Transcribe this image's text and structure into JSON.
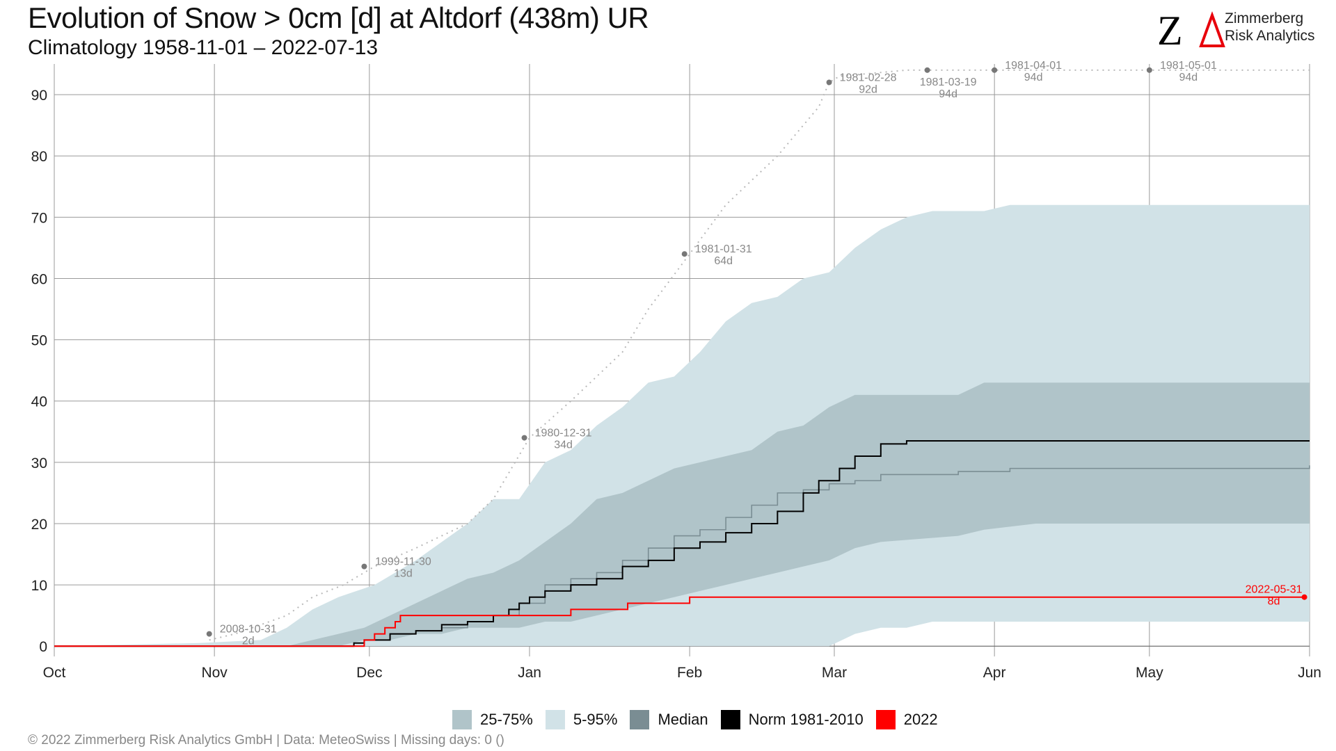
{
  "header": {
    "title": "Evolution of Snow > 0cm [d] at Altdorf (438m) UR",
    "subtitle": "Climatology 1958-11-01 – 2022-07-13"
  },
  "logo": {
    "line1": "Zimmerberg",
    "line2": "Risk Analytics",
    "accent": "#e8000b"
  },
  "legend": {
    "items": [
      {
        "label": "25-75%",
        "color": "#b0c4c9"
      },
      {
        "label": "5-95%",
        "color": "#d1e2e7"
      },
      {
        "label": "Median",
        "color": "#7a8d93"
      },
      {
        "label": "Norm 1981-2010",
        "color": "#000000"
      },
      {
        "label": "2022",
        "color": "#ff0000"
      }
    ]
  },
  "footer": "©  2022 Zimmerberg Risk Analytics GmbH | Data: MeteoSwiss | Missing days: 0 ()",
  "chart_data": {
    "type": "area",
    "x_axis": {
      "ticks": [
        "Oct",
        "Nov",
        "Dec",
        "Jan",
        "Feb",
        "Mar",
        "Apr",
        "May",
        "Jun"
      ],
      "tick_days": [
        0,
        31,
        61,
        92,
        123,
        151,
        182,
        212,
        243
      ]
    },
    "y_axis": {
      "ticks": [
        0,
        10,
        20,
        30,
        40,
        50,
        60,
        70,
        80,
        90
      ],
      "ylim": [
        -1,
        95
      ]
    },
    "grid": true,
    "legend_position": "bottom",
    "series": [
      {
        "name": "5-95%",
        "kind": "band",
        "points": [
          [
            0,
            0,
            0
          ],
          [
            28,
            0,
            0.5
          ],
          [
            40,
            0,
            1
          ],
          [
            45,
            0,
            3
          ],
          [
            50,
            0,
            6
          ],
          [
            55,
            0,
            8
          ],
          [
            62,
            0,
            10
          ],
          [
            70,
            0,
            14
          ],
          [
            75,
            0,
            17
          ],
          [
            80,
            0,
            20
          ],
          [
            85,
            0,
            24
          ],
          [
            90,
            0,
            24
          ],
          [
            95,
            0,
            30
          ],
          [
            100,
            0,
            32
          ],
          [
            105,
            0,
            36
          ],
          [
            110,
            0,
            39
          ],
          [
            115,
            0,
            43
          ],
          [
            120,
            0,
            44
          ],
          [
            125,
            0,
            48
          ],
          [
            130,
            0,
            53
          ],
          [
            135,
            0,
            56
          ],
          [
            140,
            0,
            57
          ],
          [
            145,
            0,
            60
          ],
          [
            150,
            0,
            61
          ],
          [
            155,
            2,
            65
          ],
          [
            160,
            3,
            68
          ],
          [
            165,
            3,
            70
          ],
          [
            170,
            4,
            71
          ],
          [
            180,
            4,
            71
          ],
          [
            185,
            4,
            72
          ],
          [
            243,
            4,
            72
          ]
        ]
      },
      {
        "name": "25-75%",
        "kind": "band",
        "points": [
          [
            0,
            0,
            0
          ],
          [
            45,
            0,
            0
          ],
          [
            50,
            0,
            1
          ],
          [
            55,
            0,
            2
          ],
          [
            60,
            1,
            3
          ],
          [
            65,
            1,
            5
          ],
          [
            70,
            2,
            7
          ],
          [
            75,
            2,
            9
          ],
          [
            80,
            3,
            11
          ],
          [
            85,
            3,
            12
          ],
          [
            90,
            3,
            14
          ],
          [
            95,
            4,
            17
          ],
          [
            100,
            4,
            20
          ],
          [
            105,
            5,
            24
          ],
          [
            110,
            6,
            25
          ],
          [
            115,
            7,
            27
          ],
          [
            120,
            8,
            29
          ],
          [
            125,
            9,
            30
          ],
          [
            130,
            10,
            31
          ],
          [
            135,
            11,
            32
          ],
          [
            140,
            12,
            35
          ],
          [
            145,
            13,
            36
          ],
          [
            150,
            14,
            39
          ],
          [
            155,
            16,
            41
          ],
          [
            160,
            17,
            41
          ],
          [
            175,
            18,
            41
          ],
          [
            180,
            19,
            43
          ],
          [
            190,
            20,
            43
          ],
          [
            243,
            20,
            43
          ]
        ]
      },
      {
        "name": "Median",
        "kind": "line",
        "color": "#7a8d93",
        "points": [
          [
            0,
            0
          ],
          [
            55,
            0
          ],
          [
            60,
            1
          ],
          [
            65,
            2
          ],
          [
            70,
            2.5
          ],
          [
            75,
            3
          ],
          [
            80,
            4
          ],
          [
            85,
            5
          ],
          [
            90,
            7
          ],
          [
            95,
            10
          ],
          [
            100,
            11
          ],
          [
            105,
            12
          ],
          [
            110,
            14
          ],
          [
            115,
            16
          ],
          [
            120,
            18
          ],
          [
            125,
            19
          ],
          [
            130,
            21
          ],
          [
            135,
            23
          ],
          [
            140,
            25
          ],
          [
            145,
            25.5
          ],
          [
            150,
            26.5
          ],
          [
            155,
            27
          ],
          [
            160,
            28
          ],
          [
            165,
            28
          ],
          [
            175,
            28.5
          ],
          [
            185,
            29
          ],
          [
            243,
            29.5
          ]
        ]
      },
      {
        "name": "Norm 1981-2010",
        "kind": "line",
        "color": "#000000",
        "points": [
          [
            0,
            0
          ],
          [
            55,
            0
          ],
          [
            58,
            0.5
          ],
          [
            60,
            1
          ],
          [
            65,
            2
          ],
          [
            70,
            2.5
          ],
          [
            75,
            3.5
          ],
          [
            80,
            4
          ],
          [
            85,
            5
          ],
          [
            88,
            6
          ],
          [
            90,
            7
          ],
          [
            92,
            8
          ],
          [
            95,
            9
          ],
          [
            100,
            10
          ],
          [
            105,
            11
          ],
          [
            110,
            13
          ],
          [
            115,
            14
          ],
          [
            120,
            16
          ],
          [
            125,
            17
          ],
          [
            130,
            18.5
          ],
          [
            135,
            20
          ],
          [
            140,
            22
          ],
          [
            145,
            25
          ],
          [
            148,
            27
          ],
          [
            152,
            29
          ],
          [
            155,
            31
          ],
          [
            160,
            33
          ],
          [
            165,
            33.5
          ],
          [
            243,
            33.5
          ]
        ]
      },
      {
        "name": "2022",
        "kind": "line",
        "color": "#ff0000",
        "points": [
          [
            0,
            0
          ],
          [
            59,
            0
          ],
          [
            60,
            1
          ],
          [
            62,
            2
          ],
          [
            64,
            3
          ],
          [
            66,
            4
          ],
          [
            67,
            5
          ],
          [
            99,
            5
          ],
          [
            100,
            6
          ],
          [
            110,
            6
          ],
          [
            111,
            7
          ],
          [
            122,
            7
          ],
          [
            123,
            8
          ],
          [
            242,
            8
          ]
        ]
      }
    ],
    "envelope_points": [
      [
        30,
        1
      ],
      [
        35,
        2
      ],
      [
        45,
        5
      ],
      [
        50,
        8
      ],
      [
        56,
        10
      ],
      [
        62,
        13
      ],
      [
        70,
        16
      ],
      [
        75,
        18
      ],
      [
        80,
        20
      ],
      [
        85,
        24
      ],
      [
        92,
        34
      ],
      [
        100,
        40
      ],
      [
        110,
        48
      ],
      [
        115,
        55
      ],
      [
        123,
        64
      ],
      [
        130,
        72
      ],
      [
        140,
        80
      ],
      [
        148,
        88
      ],
      [
        150,
        92
      ],
      [
        152,
        93
      ],
      [
        165,
        94
      ],
      [
        243,
        94
      ]
    ],
    "records": [
      {
        "x": 30,
        "y": 2,
        "date": "2008-10-31",
        "value": "2d",
        "label_side": "right"
      },
      {
        "x": 60,
        "y": 13,
        "date": "1999-11-30",
        "value": "13d",
        "label_side": "right"
      },
      {
        "x": 91,
        "y": 34,
        "date": "1980-12-31",
        "value": "34d",
        "label_side": "right"
      },
      {
        "x": 122,
        "y": 64,
        "date": "1981-01-31",
        "value": "64d",
        "label_side": "right"
      },
      {
        "x": 150,
        "y": 92,
        "date": "1981-02-28",
        "value": "92d",
        "label_side": "right"
      },
      {
        "x": 169,
        "y": 94,
        "date": "1981-03-19",
        "value": "94d",
        "label_side": "below"
      },
      {
        "x": 182,
        "y": 94,
        "date": "1981-04-01",
        "value": "94d",
        "label_side": "right"
      },
      {
        "x": 212,
        "y": 94,
        "date": "1981-05-01",
        "value": "94d",
        "label_side": "right"
      }
    ],
    "current": {
      "x": 242,
      "y": 8,
      "date": "2022-05-31",
      "value": "8d"
    }
  }
}
